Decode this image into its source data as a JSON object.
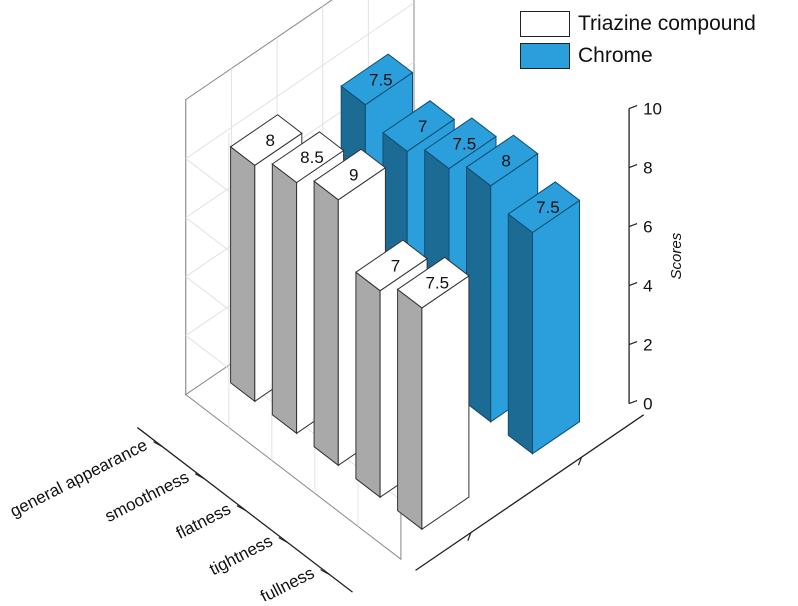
{
  "chart_data": {
    "type": "bar",
    "categories": [
      "general appearance",
      "smoothness",
      "flatness",
      "tightness",
      "fullness"
    ],
    "series": [
      {
        "name": "Triazine compound",
        "values": [
          8,
          8.5,
          9,
          7,
          7.5
        ],
        "value_labels": [
          "8",
          "8.5",
          "9",
          "7",
          "7.5"
        ],
        "color": "#ffffff"
      },
      {
        "name": "Chrome",
        "values": [
          7.5,
          7,
          7.5,
          8,
          7.5
        ],
        "value_labels": [
          "7.5",
          "7",
          "7.5",
          "8",
          "7.5"
        ],
        "color": "#2a9fdc"
      }
    ],
    "zlabel": "Scores",
    "zlim": [
      0,
      10
    ],
    "z_ticks": [
      "0",
      "2",
      "4",
      "6",
      "8",
      "10"
    ],
    "legend_position": "top-right",
    "grid": true
  }
}
